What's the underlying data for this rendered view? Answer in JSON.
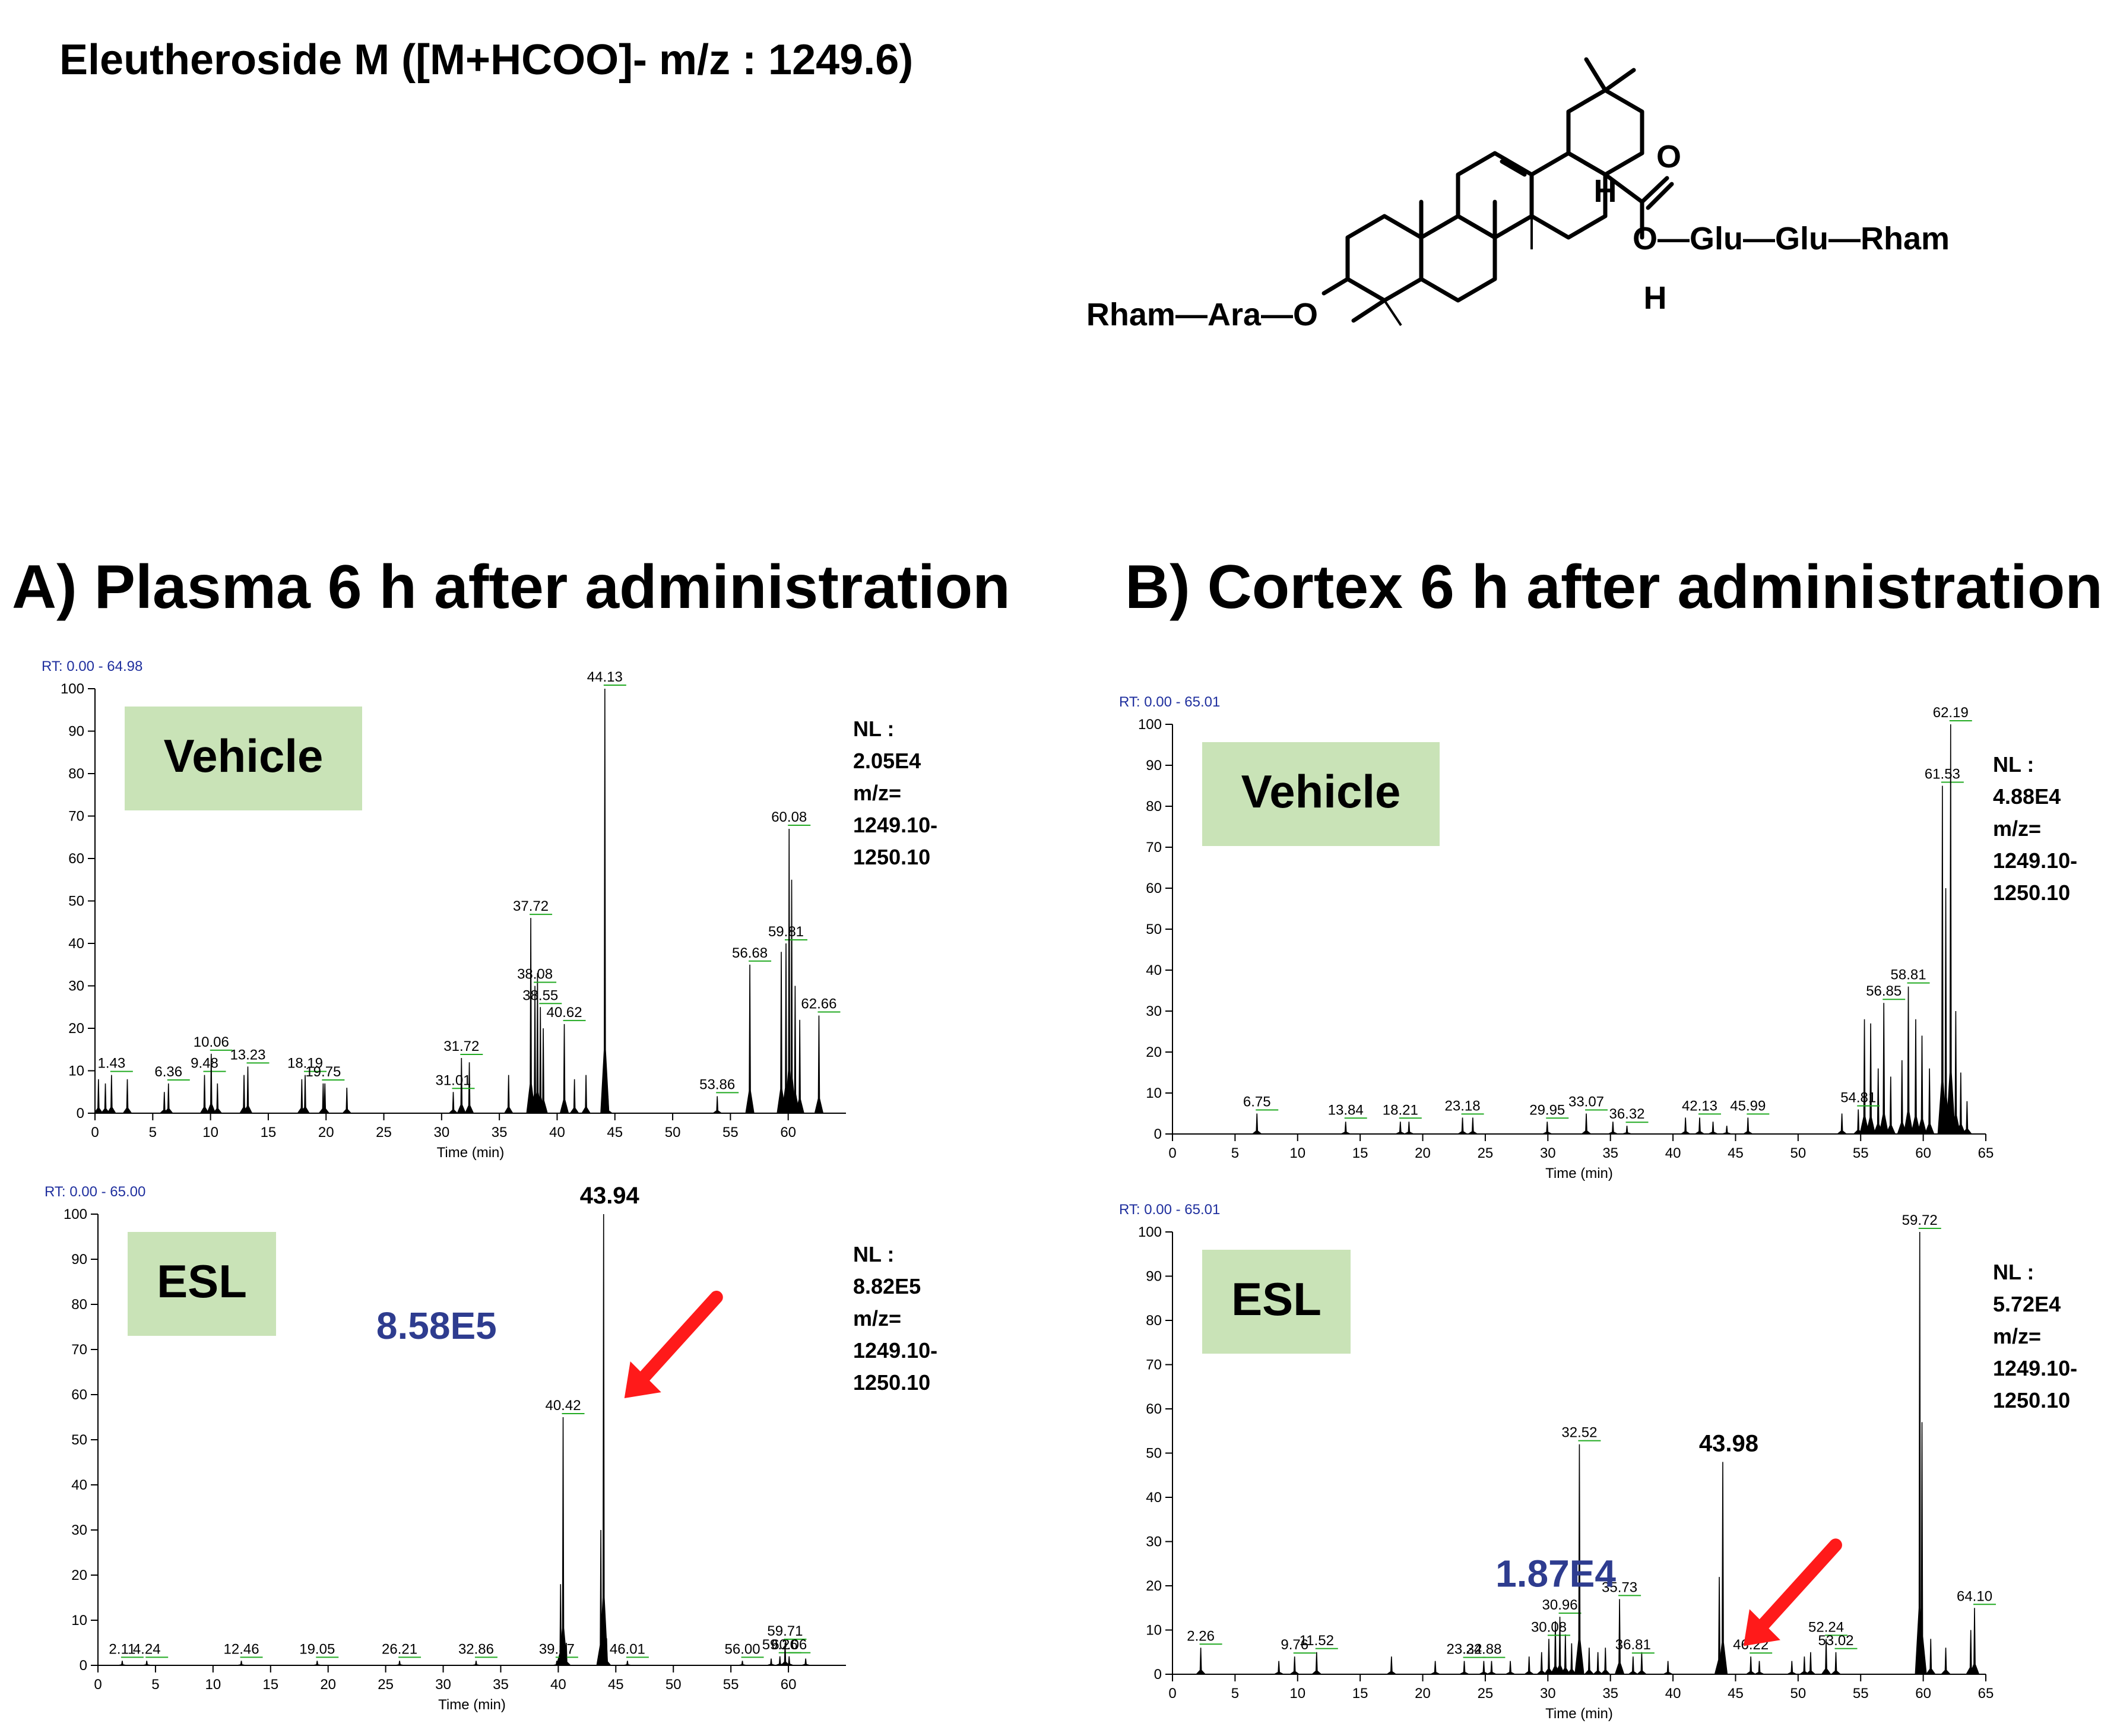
{
  "header": {
    "title": "Eleutheroside M ([M+HCOO]- m/z : 1249.6)"
  },
  "structure": {
    "substituent_left": "Rham—Ara—O",
    "substituent_right": "O—Glu—Glu—Rham",
    "o_label": "O",
    "h_label_1": "H",
    "h_label_2": "H"
  },
  "sections": [
    {
      "label": "A) Plasma 6 h after administration"
    },
    {
      "label": "B) Cortex 6 h after administration"
    }
  ],
  "colors": {
    "label_bg": "#c9e3b7",
    "arrow": "#ff1a1a",
    "intensity_text": "#2e3c8f",
    "rt_text": "#1f2f9e",
    "baseline_marker": "#22aa22"
  },
  "chart_data": [
    {
      "type": "line",
      "panel": "A-vehicle",
      "rt_range": "RT: 0.00 - 64.98",
      "sample_label": "Vehicle",
      "nl_lines": [
        "NL :",
        "2.05E4",
        "m/z=",
        "1249.10-",
        "1250.10"
      ],
      "xlabel": "Time (min)",
      "xlim": [
        0,
        65
      ],
      "ylim": [
        0,
        100
      ],
      "xticks": [
        0,
        5,
        10,
        15,
        20,
        25,
        30,
        35,
        40,
        45,
        50,
        55,
        60
      ],
      "yticks": [
        0,
        10,
        20,
        30,
        40,
        50,
        60,
        70,
        80,
        90,
        100
      ],
      "labeled_peaks": [
        {
          "x": 1.43,
          "y": 9,
          "label": "1.43"
        },
        {
          "x": 6.36,
          "y": 7,
          "label": "6.36"
        },
        {
          "x": 9.48,
          "y": 9,
          "label": "9.48"
        },
        {
          "x": 10.06,
          "y": 14,
          "label": "10.06"
        },
        {
          "x": 13.23,
          "y": 11,
          "label": "13.23"
        },
        {
          "x": 18.19,
          "y": 9,
          "label": "18.19"
        },
        {
          "x": 19.75,
          "y": 7,
          "label": "19.75"
        },
        {
          "x": 31.01,
          "y": 5,
          "label": "31.01"
        },
        {
          "x": 31.72,
          "y": 13,
          "label": "31.72"
        },
        {
          "x": 37.72,
          "y": 46,
          "label": "37.72"
        },
        {
          "x": 38.08,
          "y": 30,
          "label": "38.08"
        },
        {
          "x": 38.55,
          "y": 25,
          "label": "38.55"
        },
        {
          "x": 40.62,
          "y": 21,
          "label": "40.62"
        },
        {
          "x": 44.13,
          "y": 100,
          "label": "44.13"
        },
        {
          "x": 53.86,
          "y": 4,
          "label": "53.86"
        },
        {
          "x": 56.68,
          "y": 35,
          "label": "56.68"
        },
        {
          "x": 59.81,
          "y": 40,
          "label": "59.81"
        },
        {
          "x": 60.08,
          "y": 67,
          "label": "60.08"
        },
        {
          "x": 62.66,
          "y": 23,
          "label": "62.66"
        }
      ],
      "other_peaks": [
        {
          "x": 0.3,
          "y": 8
        },
        {
          "x": 0.9,
          "y": 7
        },
        {
          "x": 2.8,
          "y": 8
        },
        {
          "x": 6.0,
          "y": 5
        },
        {
          "x": 10.6,
          "y": 7
        },
        {
          "x": 12.9,
          "y": 9
        },
        {
          "x": 17.9,
          "y": 8
        },
        {
          "x": 19.9,
          "y": 7
        },
        {
          "x": 21.8,
          "y": 6
        },
        {
          "x": 32.4,
          "y": 12
        },
        {
          "x": 35.8,
          "y": 9
        },
        {
          "x": 38.3,
          "y": 33
        },
        {
          "x": 38.8,
          "y": 20
        },
        {
          "x": 41.5,
          "y": 8
        },
        {
          "x": 42.5,
          "y": 9
        },
        {
          "x": 44.4,
          "y": 4
        },
        {
          "x": 59.4,
          "y": 38
        },
        {
          "x": 60.3,
          "y": 55
        },
        {
          "x": 60.6,
          "y": 30
        },
        {
          "x": 61.0,
          "y": 22
        }
      ]
    },
    {
      "type": "line",
      "panel": "A-esl",
      "rt_range": "RT: 0.00 - 65.00",
      "sample_label": "ESL",
      "intensity": "8.58E5",
      "target_peak_label": "43.94",
      "nl_lines": [
        "NL :",
        "8.82E5",
        "m/z=",
        "1249.10-",
        "1250.10"
      ],
      "xlabel": "Time (min)",
      "xlim": [
        0,
        65
      ],
      "ylim": [
        0,
        100
      ],
      "xticks": [
        0,
        5,
        10,
        15,
        20,
        25,
        30,
        35,
        40,
        45,
        50,
        55,
        60
      ],
      "yticks": [
        0,
        10,
        20,
        30,
        40,
        50,
        60,
        70,
        80,
        90,
        100
      ],
      "target_peak": {
        "x": 43.94,
        "y": 100
      },
      "labeled_peaks": [
        {
          "x": 2.11,
          "y": 1,
          "label": "2.11"
        },
        {
          "x": 4.24,
          "y": 1,
          "label": "4.24"
        },
        {
          "x": 12.46,
          "y": 1,
          "label": "12.46"
        },
        {
          "x": 19.05,
          "y": 1,
          "label": "19.05"
        },
        {
          "x": 26.21,
          "y": 1,
          "label": "26.21"
        },
        {
          "x": 32.86,
          "y": 1,
          "label": "32.86"
        },
        {
          "x": 39.87,
          "y": 1,
          "label": "39.87"
        },
        {
          "x": 40.42,
          "y": 55,
          "label": "40.42"
        },
        {
          "x": 46.01,
          "y": 1,
          "label": "46.01"
        },
        {
          "x": 56.0,
          "y": 1,
          "label": "56.00"
        },
        {
          "x": 59.26,
          "y": 2,
          "label": "59.26"
        },
        {
          "x": 59.71,
          "y": 5,
          "label": "59.71"
        },
        {
          "x": 60.06,
          "y": 2,
          "label": "60.06"
        }
      ],
      "other_peaks": [
        {
          "x": 40.2,
          "y": 18
        },
        {
          "x": 40.7,
          "y": 5
        },
        {
          "x": 43.7,
          "y": 30
        },
        {
          "x": 44.2,
          "y": 6
        },
        {
          "x": 58.5,
          "y": 1.5
        },
        {
          "x": 61.5,
          "y": 1.5
        }
      ]
    },
    {
      "type": "line",
      "panel": "B-vehicle",
      "rt_range": "RT: 0.00 - 65.01",
      "sample_label": "Vehicle",
      "nl_lines": [
        "NL :",
        "4.88E4",
        "m/z=",
        "1249.10-",
        "1250.10"
      ],
      "xlabel": "Time (min)",
      "xlim": [
        0,
        65
      ],
      "ylim": [
        0,
        100
      ],
      "xticks": [
        0,
        5,
        10,
        15,
        20,
        25,
        30,
        35,
        40,
        45,
        50,
        55,
        60,
        65
      ],
      "yticks": [
        0,
        10,
        20,
        30,
        40,
        50,
        60,
        70,
        80,
        90,
        100
      ],
      "labeled_peaks": [
        {
          "x": 6.75,
          "y": 5,
          "label": "6.75"
        },
        {
          "x": 13.84,
          "y": 3,
          "label": "13.84"
        },
        {
          "x": 18.21,
          "y": 3,
          "label": "18.21"
        },
        {
          "x": 23.18,
          "y": 4,
          "label": "23.18"
        },
        {
          "x": 29.95,
          "y": 3,
          "label": "29.95"
        },
        {
          "x": 33.07,
          "y": 5,
          "label": "33.07"
        },
        {
          "x": 36.32,
          "y": 2,
          "label": "36.32"
        },
        {
          "x": 42.13,
          "y": 4,
          "label": "42.13"
        },
        {
          "x": 45.99,
          "y": 4,
          "label": "45.99"
        },
        {
          "x": 54.81,
          "y": 6,
          "label": "54.81"
        },
        {
          "x": 56.85,
          "y": 32,
          "label": "56.85"
        },
        {
          "x": 58.81,
          "y": 36,
          "label": "58.81"
        },
        {
          "x": 61.53,
          "y": 85,
          "label": "61.53"
        },
        {
          "x": 62.19,
          "y": 100,
          "label": "62.19"
        }
      ],
      "other_peaks": [
        {
          "x": 18.9,
          "y": 3
        },
        {
          "x": 24.0,
          "y": 4
        },
        {
          "x": 35.2,
          "y": 3
        },
        {
          "x": 41.0,
          "y": 4
        },
        {
          "x": 43.2,
          "y": 3
        },
        {
          "x": 44.3,
          "y": 2
        },
        {
          "x": 53.5,
          "y": 5
        },
        {
          "x": 55.3,
          "y": 28
        },
        {
          "x": 55.8,
          "y": 27
        },
        {
          "x": 56.4,
          "y": 16
        },
        {
          "x": 57.4,
          "y": 14
        },
        {
          "x": 58.3,
          "y": 18
        },
        {
          "x": 59.4,
          "y": 28
        },
        {
          "x": 59.9,
          "y": 24
        },
        {
          "x": 60.5,
          "y": 16
        },
        {
          "x": 61.8,
          "y": 60
        },
        {
          "x": 62.6,
          "y": 30
        },
        {
          "x": 63.0,
          "y": 15
        },
        {
          "x": 63.5,
          "y": 8
        }
      ]
    },
    {
      "type": "line",
      "panel": "B-esl",
      "rt_range": "RT: 0.00 - 65.01",
      "sample_label": "ESL",
      "intensity": "1.87E4",
      "target_peak_label": "43.98",
      "nl_lines": [
        "NL :",
        "5.72E4",
        "m/z=",
        "1249.10-",
        "1250.10"
      ],
      "xlabel": "Time (min)",
      "xlim": [
        0,
        65
      ],
      "ylim": [
        0,
        100
      ],
      "xticks": [
        0,
        5,
        10,
        15,
        20,
        25,
        30,
        35,
        40,
        45,
        50,
        55,
        60,
        65
      ],
      "yticks": [
        0,
        10,
        20,
        30,
        40,
        50,
        60,
        70,
        80,
        90,
        100
      ],
      "target_peak": {
        "x": 43.98,
        "y": 48
      },
      "labeled_peaks": [
        {
          "x": 2.26,
          "y": 6,
          "label": "2.26"
        },
        {
          "x": 9.76,
          "y": 4,
          "label": "9.76"
        },
        {
          "x": 11.52,
          "y": 5,
          "label": "11.52"
        },
        {
          "x": 23.32,
          "y": 3,
          "label": "23.32"
        },
        {
          "x": 24.88,
          "y": 3,
          "label": "24.88"
        },
        {
          "x": 30.08,
          "y": 8,
          "label": "30.08"
        },
        {
          "x": 30.96,
          "y": 13,
          "label": "30.96"
        },
        {
          "x": 32.52,
          "y": 52,
          "label": "32.52"
        },
        {
          "x": 35.73,
          "y": 17,
          "label": "35.73"
        },
        {
          "x": 36.81,
          "y": 4,
          "label": "36.81"
        },
        {
          "x": 46.22,
          "y": 4,
          "label": "46.22"
        },
        {
          "x": 52.24,
          "y": 8,
          "label": "52.24"
        },
        {
          "x": 53.02,
          "y": 5,
          "label": "53.02"
        },
        {
          "x": 59.72,
          "y": 100,
          "label": "59.72"
        },
        {
          "x": 64.1,
          "y": 15,
          "label": "64.10"
        }
      ],
      "other_peaks": [
        {
          "x": 8.5,
          "y": 3
        },
        {
          "x": 17.5,
          "y": 4
        },
        {
          "x": 21.0,
          "y": 3
        },
        {
          "x": 25.5,
          "y": 3
        },
        {
          "x": 27.0,
          "y": 3
        },
        {
          "x": 28.5,
          "y": 4
        },
        {
          "x": 29.5,
          "y": 5
        },
        {
          "x": 30.6,
          "y": 12
        },
        {
          "x": 31.4,
          "y": 9
        },
        {
          "x": 31.9,
          "y": 7
        },
        {
          "x": 33.3,
          "y": 6
        },
        {
          "x": 34.0,
          "y": 5
        },
        {
          "x": 34.6,
          "y": 6
        },
        {
          "x": 37.5,
          "y": 5
        },
        {
          "x": 39.6,
          "y": 3
        },
        {
          "x": 43.7,
          "y": 22
        },
        {
          "x": 46.9,
          "y": 3
        },
        {
          "x": 49.5,
          "y": 3
        },
        {
          "x": 50.5,
          "y": 4
        },
        {
          "x": 51.0,
          "y": 5
        },
        {
          "x": 59.9,
          "y": 57
        },
        {
          "x": 60.6,
          "y": 8
        },
        {
          "x": 61.8,
          "y": 6
        },
        {
          "x": 63.8,
          "y": 10
        }
      ]
    }
  ]
}
